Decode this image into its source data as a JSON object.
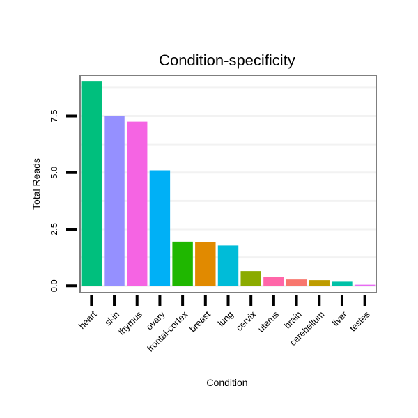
{
  "chart_data": {
    "type": "bar",
    "title": "Condition-specificity",
    "xlabel": "Condition",
    "ylabel": "Total Reads",
    "ylim": [
      -0.3,
      9.3
    ],
    "yticks": [
      0,
      2.5,
      5,
      7.5
    ],
    "ytick_labels": [
      "0.0",
      "2.5",
      "5.0",
      "7.5"
    ],
    "categories": [
      "heart",
      "skin",
      "thymus",
      "ovary",
      "frontal-cortex",
      "breast",
      "lung",
      "cervix",
      "uterus",
      "brain",
      "cerebellum",
      "liver",
      "testes"
    ],
    "values": [
      9.05,
      7.5,
      7.25,
      5.1,
      1.95,
      1.92,
      1.78,
      0.65,
      0.4,
      0.28,
      0.25,
      0.18,
      0.05
    ],
    "colors": [
      "#00BF7D",
      "#9590FF",
      "#F564E3",
      "#00B0F6",
      "#1FB700",
      "#E18A00",
      "#00BCD8",
      "#8BAB00",
      "#FF66A8",
      "#F8766D",
      "#BE9C00",
      "#00C1A7",
      "#E76BF3"
    ],
    "legend": "none",
    "grid": true
  }
}
